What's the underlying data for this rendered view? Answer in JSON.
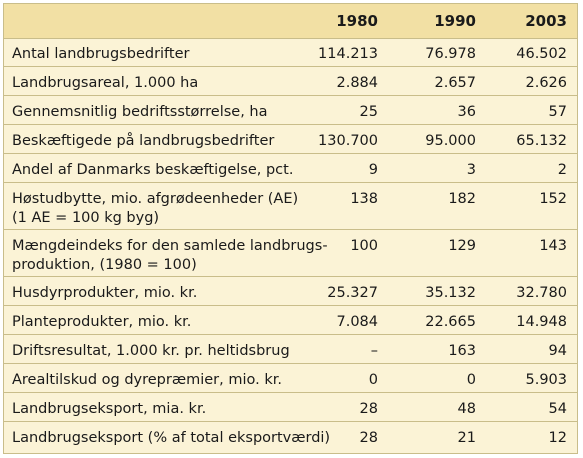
{
  "table": {
    "columns": [
      "1980",
      "1990",
      "2003"
    ],
    "rows": [
      {
        "label": "Antal landbrugsbedrifter",
        "values": [
          "114.213",
          "76.978",
          "46.502"
        ]
      },
      {
        "label": "Landbrugsareal, 1.000 ha",
        "values": [
          "2.884",
          "2.657",
          "2.626"
        ]
      },
      {
        "label": "Gennemsnitlig bedriftsstørrelse, ha",
        "values": [
          "25",
          "36",
          "57"
        ]
      },
      {
        "label": "Beskæftigede på landbrugsbedrifter",
        "values": [
          "130.700",
          "95.000",
          "65.132"
        ]
      },
      {
        "label": "Andel af Danmarks beskæftigelse, pct.",
        "values": [
          "9",
          "3",
          "2"
        ]
      },
      {
        "label_lines": [
          "Høstudbytte, mio. afgrødeenheder (AE)",
          "(1 AE = 100 kg byg)"
        ],
        "values": [
          "138",
          "182",
          "152"
        ]
      },
      {
        "label_lines": [
          "Mængdeindeks for den samlede landbrugs-",
          "produktion, (1980 = 100)"
        ],
        "values": [
          "100",
          "129",
          "143"
        ]
      },
      {
        "label": "Husdyrprodukter, mio. kr.",
        "values": [
          "25.327",
          "35.132",
          "32.780"
        ]
      },
      {
        "label": "Planteprodukter, mio. kr.",
        "values": [
          "7.084",
          "22.665",
          "14.948"
        ]
      },
      {
        "label": "Driftsresultat, 1.000 kr. pr. heltidsbrug",
        "values": [
          "–",
          "163",
          "94"
        ]
      },
      {
        "label": "Arealtilskud og dyrepræmier, mio. kr.",
        "values": [
          "0",
          "0",
          "5.903"
        ]
      },
      {
        "label": "Landbrugseksport, mia. kr.",
        "values": [
          "28",
          "48",
          "54"
        ]
      },
      {
        "label": "Landbrugseksport (% af total eksportværdi)",
        "values": [
          "28",
          "21",
          "12"
        ]
      }
    ]
  }
}
